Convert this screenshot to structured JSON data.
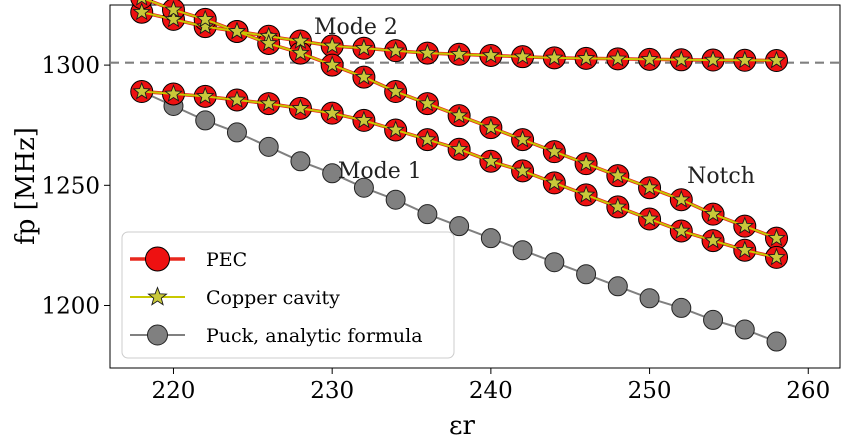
{
  "chart_data": {
    "type": "line",
    "xlabel": "εr",
    "ylabel": "fp [MHz]",
    "xlim": [
      216,
      262
    ],
    "ylim": [
      1174,
      1325
    ],
    "xticks": [
      220,
      230,
      240,
      250,
      260
    ],
    "yticks": [
      1200,
      1250,
      1300
    ],
    "reference_line": {
      "y": 1301,
      "style": "dashed",
      "color": "#808080"
    },
    "annotations": [
      {
        "text": "Mode 2",
        "x": 231.5,
        "y": 1313
      },
      {
        "text": "Mode 1",
        "x": 233,
        "y": 1253
      },
      {
        "text": "Notch",
        "x": 254.5,
        "y": 1251
      }
    ],
    "legend": {
      "position": "lower-left",
      "entries": [
        {
          "label": "PEC",
          "series_style": "pec"
        },
        {
          "label": "Copper cavity",
          "series_style": "copper"
        },
        {
          "label": "Puck, analytic formula",
          "series_style": "puck"
        }
      ]
    },
    "x": [
      218,
      220,
      222,
      224,
      226,
      228,
      230,
      232,
      234,
      236,
      238,
      240,
      242,
      244,
      246,
      248,
      250,
      252,
      254,
      256,
      258
    ],
    "series": [
      {
        "name": "PEC",
        "style": "pec",
        "y": [
          1322,
          1319,
          1316,
          1314,
          1312,
          1310,
          1308,
          1307,
          1306,
          1305,
          1304.5,
          1304,
          1303.5,
          1303,
          1302.8,
          1302.6,
          1302.4,
          1302.2,
          1302.1,
          1302.0,
          1301.9
        ]
      },
      {
        "name": "PEC",
        "style": "pec",
        "y": [
          1328,
          1323,
          1319,
          1314,
          1309,
          1305,
          1300,
          1295,
          1289,
          1284,
          1279,
          1274,
          1269,
          1264,
          1259,
          1254,
          1249,
          1244,
          1238,
          1233,
          1228
        ]
      },
      {
        "name": "PEC",
        "style": "pec",
        "y": [
          1289,
          1288,
          1287,
          1285.5,
          1284,
          1282,
          1280,
          1277,
          1273,
          1269,
          1265,
          1260,
          1256,
          1251,
          1246,
          1241,
          1236,
          1231,
          1227,
          1223,
          1220
        ]
      },
      {
        "name": "Copper cavity",
        "style": "copper",
        "y": [
          1322,
          1319,
          1316,
          1314,
          1312,
          1310,
          1308,
          1307,
          1306,
          1305,
          1304.5,
          1304,
          1303.5,
          1303,
          1302.8,
          1302.6,
          1302.4,
          1302.2,
          1302.1,
          1302.0,
          1301.9
        ]
      },
      {
        "name": "Copper cavity",
        "style": "copper",
        "y": [
          1328,
          1323,
          1319,
          1314,
          1309,
          1305,
          1300,
          1295,
          1289,
          1284,
          1279,
          1274,
          1269,
          1264,
          1259,
          1254,
          1249,
          1244,
          1238,
          1233,
          1228
        ]
      },
      {
        "name": "Copper cavity",
        "style": "copper",
        "y": [
          1289,
          1288,
          1287,
          1285.5,
          1284,
          1282,
          1280,
          1277,
          1273,
          1269,
          1265,
          1260,
          1256,
          1251,
          1246,
          1241,
          1236,
          1231,
          1227,
          1223,
          1220
        ]
      },
      {
        "name": "Puck, analytic formula",
        "style": "puck",
        "y": [
          1289,
          1283,
          1277,
          1272,
          1266,
          1260,
          1255,
          1249,
          1244,
          1238,
          1233,
          1228,
          1223,
          1218,
          1213,
          1208,
          1203,
          1199,
          1194,
          1190,
          1185
        ]
      }
    ],
    "styles": {
      "pec": {
        "line": "#e8281e",
        "fill": "#ee1111",
        "edge": "#000000",
        "marker": "circle"
      },
      "copper": {
        "line": "#c8c800",
        "fill": "#c9c93a",
        "edge": "#1a1a1a",
        "marker": "star"
      },
      "puck": {
        "line": "#808080",
        "fill": "#808080",
        "edge": "#222222",
        "marker": "circle"
      }
    },
    "grid": false
  }
}
